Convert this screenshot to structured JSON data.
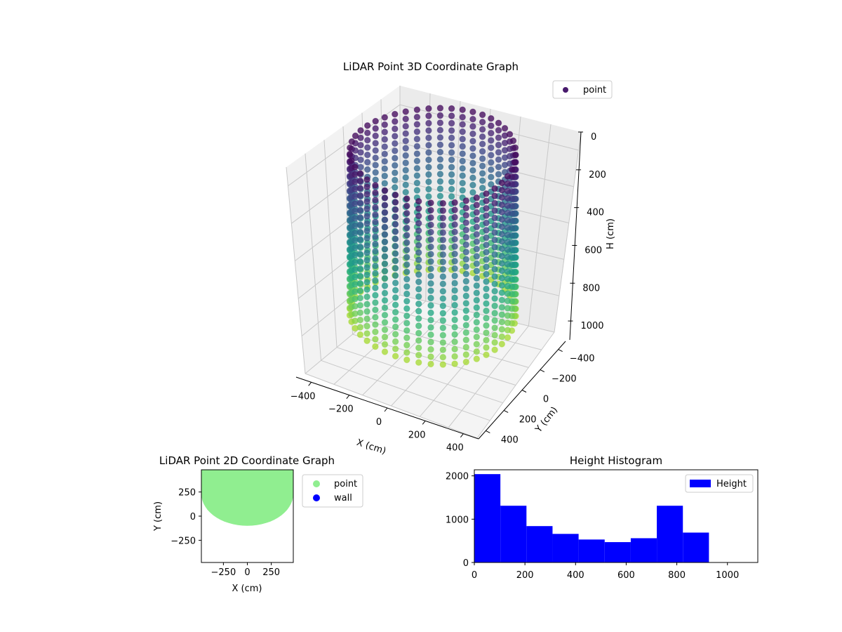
{
  "chart_data": [
    {
      "type": "scatter3d",
      "title": "LiDAR Point 3D Coordinate Graph",
      "xlabel": "X (cm)",
      "ylabel": "Y (cm)",
      "zlabel": "H (cm)",
      "x_ticks": [
        "−400",
        "−200",
        "0",
        "200",
        "400"
      ],
      "y_ticks": [
        "−400",
        "−200",
        "0",
        "200",
        "400"
      ],
      "z_ticks": [
        "0",
        "200",
        "400",
        "600",
        "800",
        "1000"
      ],
      "xlim": [
        -480,
        480
      ],
      "ylim": [
        -480,
        480
      ],
      "zlim": [
        0,
        1100
      ],
      "z_inverted": true,
      "legend": [
        {
          "label": "point",
          "color": "#481a6c"
        }
      ],
      "legend_position": "upper right",
      "colormap": "viridis",
      "description_shape": "dense cylindrical shell of points, radius ~480 cm, heights 0 to ~900 cm"
    },
    {
      "type": "scatter",
      "title": "LiDAR Point 2D Coordinate Graph",
      "xlabel": "X (cm)",
      "ylabel": "Y (cm)",
      "x_ticks": [
        "−250",
        "0",
        "250"
      ],
      "y_ticks": [
        "250",
        "0",
        "−250"
      ],
      "xlim": [
        -480,
        480
      ],
      "ylim": [
        -480,
        480
      ],
      "legend": [
        {
          "label": "point",
          "color": "#90ee90"
        },
        {
          "label": "wall",
          "color": "#0000ff"
        }
      ],
      "legend_position": "outside right"
    },
    {
      "type": "bar",
      "title": "Height Histogram",
      "xlabel": "",
      "ylabel": "",
      "series": [
        {
          "name": "Height",
          "color": "#0000ff",
          "bins": [
            {
              "x0": 0,
              "x1": 103,
              "count": 2040
            },
            {
              "x0": 103,
              "x1": 206,
              "count": 1310
            },
            {
              "x0": 206,
              "x1": 309,
              "count": 840
            },
            {
              "x0": 309,
              "x1": 412,
              "count": 660
            },
            {
              "x0": 412,
              "x1": 515,
              "count": 530
            },
            {
              "x0": 515,
              "x1": 618,
              "count": 470
            },
            {
              "x0": 618,
              "x1": 721,
              "count": 560
            },
            {
              "x0": 721,
              "x1": 824,
              "count": 1310
            },
            {
              "x0": 824,
              "x1": 927,
              "count": 690
            }
          ]
        }
      ],
      "x_ticks": [
        "0",
        "200",
        "400",
        "600",
        "800",
        "1000"
      ],
      "y_ticks": [
        "0",
        "1000",
        "2000"
      ],
      "xlim": [
        0,
        1120
      ],
      "ylim": [
        0,
        2140
      ],
      "legend_position": "upper right"
    }
  ]
}
